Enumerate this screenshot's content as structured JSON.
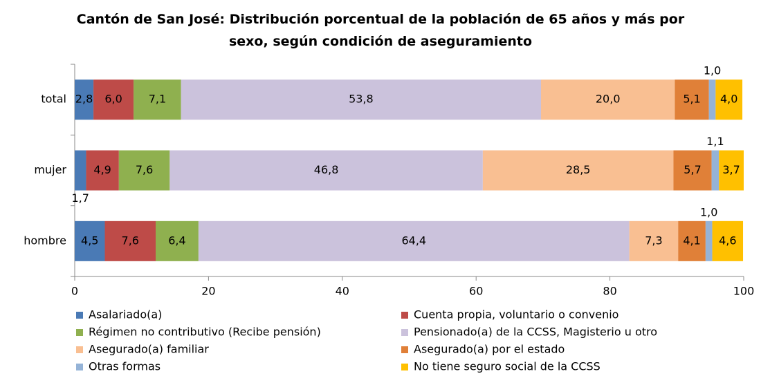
{
  "chart_data": {
    "type": "stacked_barh",
    "title": "Cantón de San José: Distribución porcentual de la población de 65 años y más por sexo, según condición de aseguramiento",
    "categories": [
      "total",
      "mujer",
      "hombre"
    ],
    "xlim": [
      0,
      100
    ],
    "xticks": [
      0,
      20,
      40,
      60,
      80,
      100
    ],
    "grid": false,
    "series": [
      {
        "name": "Asalariado(a)",
        "color": "#4a7ab5",
        "values": [
          2.8,
          1.7,
          4.5
        ],
        "value_labels": [
          "2,8",
          "1,7",
          "4,5"
        ]
      },
      {
        "name": "Cuenta propia, voluntario o convenio",
        "color": "#be4b48",
        "values": [
          6.0,
          4.9,
          7.6
        ],
        "value_labels": [
          "6,0",
          "4,9",
          "7,6"
        ]
      },
      {
        "name": "Régimen no contributivo (Recibe pensión)",
        "color": "#8fb04f",
        "values": [
          7.1,
          7.6,
          6.4
        ],
        "value_labels": [
          "7,1",
          "7,6",
          "6,4"
        ]
      },
      {
        "name": "Pensionado(a) de la CCSS, Magisterio u otro",
        "color": "#cbc2dc",
        "values": [
          53.8,
          46.8,
          64.4
        ],
        "value_labels": [
          "53,8",
          "46,8",
          "64,4"
        ]
      },
      {
        "name": "Asegurado(a) familiar",
        "color": "#f9bf92",
        "values": [
          20.0,
          28.5,
          7.3
        ],
        "value_labels": [
          "20,0",
          "28,5",
          "7,3"
        ]
      },
      {
        "name": "Asegurado(a) por el estado",
        "color": "#e08038",
        "values": [
          5.1,
          5.7,
          4.1
        ],
        "value_labels": [
          "5,1",
          "5,7",
          "4,1"
        ]
      },
      {
        "name": "Otras formas",
        "color": "#95b3d7",
        "values": [
          1.0,
          1.1,
          1.0
        ],
        "value_labels": [
          "1,0",
          "1,1",
          "1,0"
        ]
      },
      {
        "name": "No tiene seguro social de la CCSS",
        "color": "#ffc000",
        "values": [
          4.0,
          3.7,
          4.6
        ],
        "value_labels": [
          "4,0",
          "3,7",
          "4,6"
        ]
      }
    ]
  }
}
